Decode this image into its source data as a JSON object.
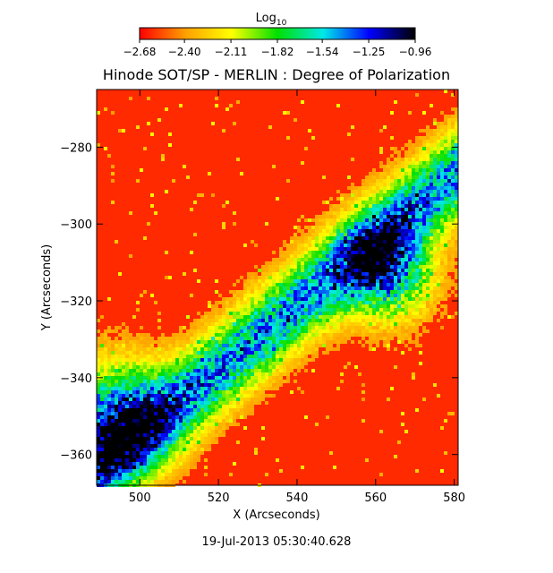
{
  "chart_data": {
    "type": "heatmap",
    "title": "Hinode SOT/SP - MERLIN : Degree of Polarization",
    "xlabel": "X (Arcseconds)",
    "ylabel": "Y (Arcseconds)",
    "xlim": [
      489,
      581
    ],
    "ylim": [
      -368,
      -265
    ],
    "x_ticks": [
      500,
      520,
      540,
      560,
      580
    ],
    "x_tick_labels": [
      "500",
      "520",
      "540",
      "560",
      "580"
    ],
    "y_ticks": [
      -280,
      -300,
      -320,
      -340,
      -360
    ],
    "y_tick_labels": [
      "−280",
      "−300",
      "−320",
      "−340",
      "−360"
    ],
    "colorbar": {
      "label_base": "Log",
      "label_sub": "10",
      "range": [
        -2.68,
        -0.96
      ],
      "ticks": [
        -2.68,
        -2.4,
        -2.11,
        -1.82,
        -1.54,
        -1.25,
        -0.96
      ],
      "tick_labels": [
        "−2.68",
        "−2.40",
        "−2.11",
        "−1.82",
        "−1.54",
        "−1.25",
        "−0.96"
      ],
      "colormap": [
        "#ff0000",
        "#ffa000",
        "#ffff00",
        "#00e000",
        "#00e8e8",
        "#0000ff",
        "#000000"
      ]
    },
    "grid": false
  },
  "footer": {
    "timestamp": "19-Jul-2013 05:30:40.628"
  }
}
